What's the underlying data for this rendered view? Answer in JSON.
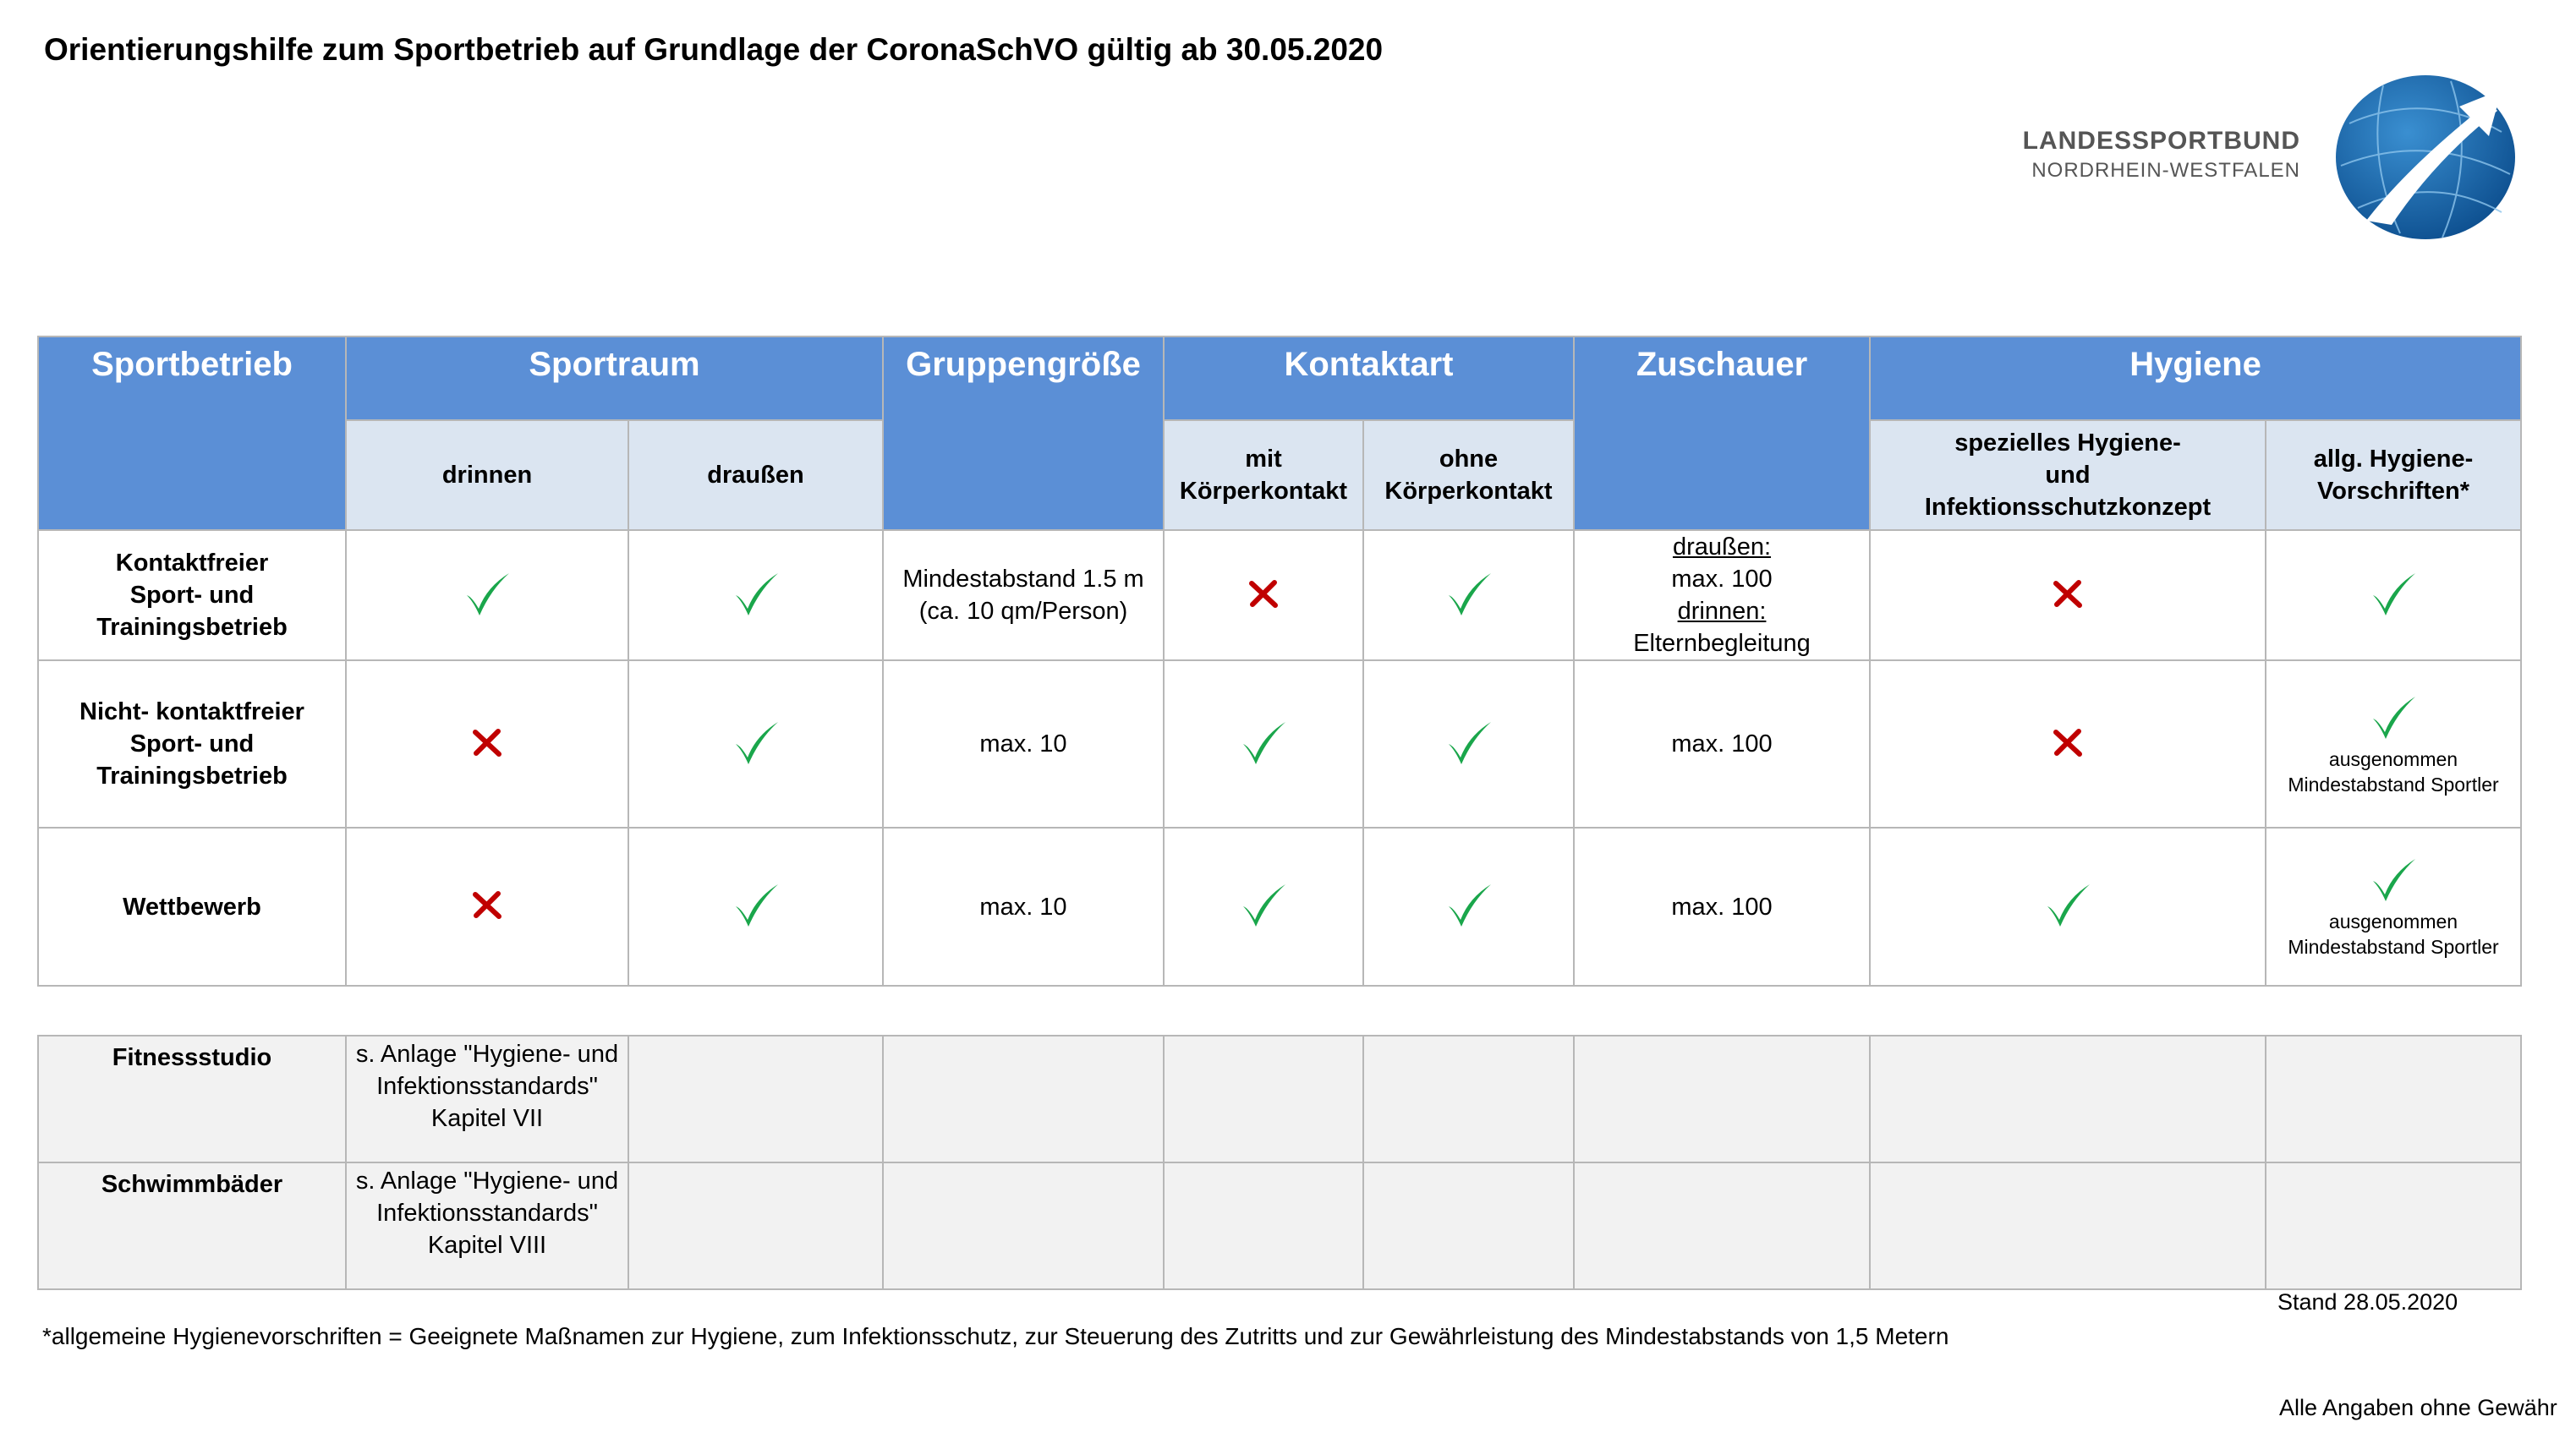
{
  "title": "Orientierungshilfe zum Sportbetrieb auf Grundlage der CoronaSchVO gültig ab 30.05.2020",
  "logo": {
    "line1": "LANDESSPORTBUND",
    "line2": "NORDRHEIN-WESTFALEN",
    "colors": {
      "globe": "#1f6fb5",
      "globe_dark": "#0d4f8f",
      "arrow": "#ffffff"
    }
  },
  "colors": {
    "header": "#5b8fd6",
    "subheader": "#dbe5f1",
    "check": "#1aa64b",
    "cross": "#c00000",
    "grey_rows": "#f2f2f2"
  },
  "headers": {
    "sportbetrieb": "Sportbetrieb",
    "sportraum": "Sportraum",
    "gruppengroesse": "Gruppengröße",
    "kontaktart": "Kontaktart",
    "zuschauer": "Zuschauer",
    "hygiene": "Hygiene"
  },
  "subheaders": {
    "drinnen": "drinnen",
    "draussen": "draußen",
    "mit_1": "mit",
    "mit_2": "Körperkontakt",
    "ohne_1": "ohne",
    "ohne_2": "Körperkontakt",
    "spez_1": "spezielles Hygiene-",
    "spez_2": "und",
    "spez_3": "Infektionsschutzkonzept",
    "allg_1": "allg. Hygiene-",
    "allg_2": "Vorschriften*"
  },
  "rows": [
    {
      "name": [
        "Kontaktfreier",
        "Sport- und",
        "Trainingsbetrieb"
      ],
      "drinnen": "check",
      "draussen": "check",
      "gruppe": [
        "Mindestabstand 1.5 m",
        "(ca. 10 qm/Person)"
      ],
      "mit": "cross",
      "ohne": "check",
      "zuschauer": [
        "draußen:",
        "max. 100",
        "drinnen:",
        "Elternbegleitung"
      ],
      "spezielles": "cross",
      "allg": "check"
    },
    {
      "name": [
        "Nicht- kontaktfreier",
        "Sport- und",
        "Trainingsbetrieb"
      ],
      "drinnen": "cross",
      "draussen": "check",
      "gruppe": "max. 10",
      "mit": "check",
      "ohne": "check",
      "zuschauer": "max. 100",
      "spezielles": "cross",
      "allg": "check",
      "allg_note": [
        "ausgenommen",
        "Mindestabstand Sportler"
      ]
    },
    {
      "name": [
        "Wettbewerb"
      ],
      "drinnen": "cross",
      "draussen": "check",
      "gruppe": "max. 10",
      "mit": "check",
      "ohne": "check",
      "zuschauer": "max. 100",
      "spezielles": "check",
      "allg": "check",
      "allg_note": [
        "ausgenommen",
        "Mindestabstand Sportler"
      ]
    }
  ],
  "extra_rows": [
    {
      "name": "Fitnessstudio",
      "note": [
        "s. Anlage \"Hygiene- und",
        "Infektionsstandards\"",
        "Kapitel VII"
      ]
    },
    {
      "name": "Schwimmbäder",
      "note": [
        "s. Anlage \"Hygiene- und",
        "Infektionsstandards\"",
        "Kapitel VIII"
      ]
    }
  ],
  "stand": "Stand 28.05.2020",
  "footnote": "*allgemeine Hygienevorschriften = Geeignete Maßnamen zur Hygiene, zum Infektionsschutz, zur Steuerung des Zutritts und zur Gewährleistung des Mindestabstands von 1,5 Metern",
  "disclaimer": "Alle Angaben ohne Gewähr"
}
